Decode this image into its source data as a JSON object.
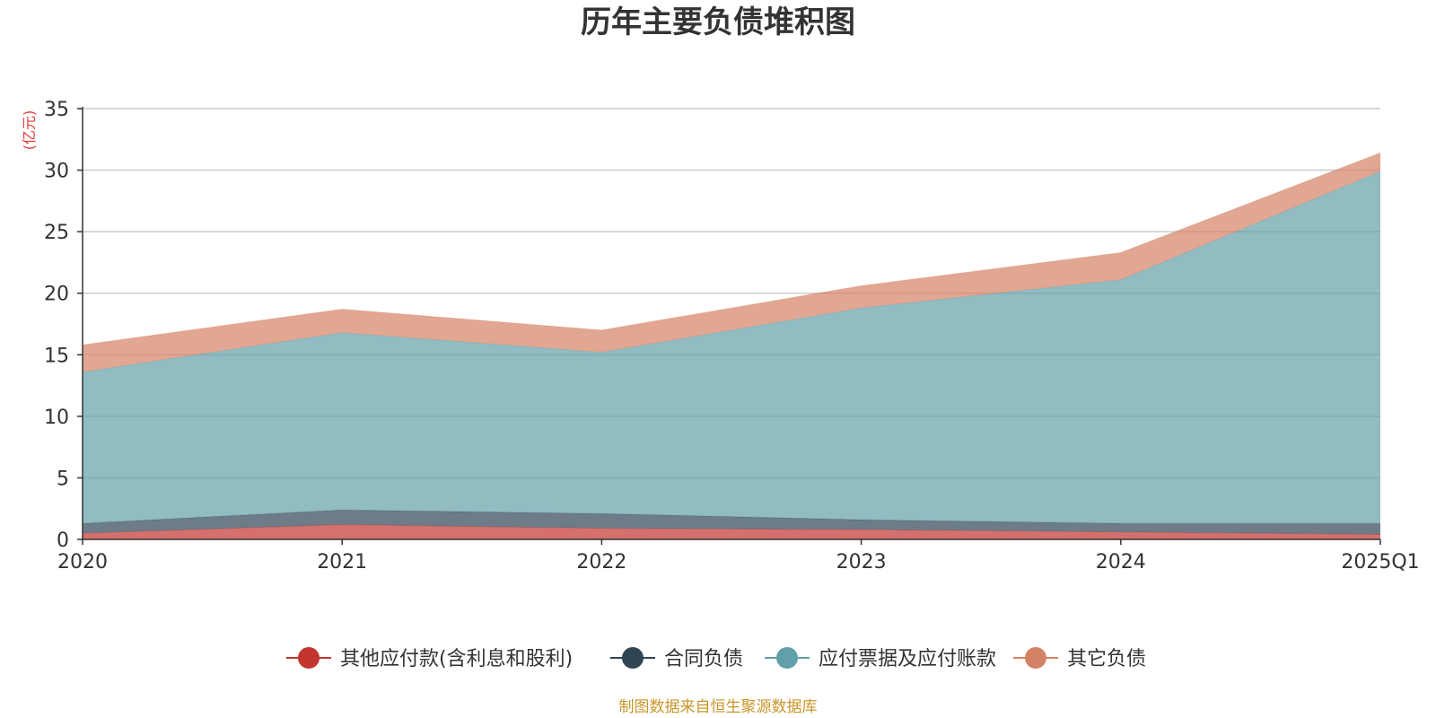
{
  "chart_data": {
    "type": "area",
    "stacked": true,
    "title": "历年主要负债堆积图",
    "y_unit_label": "(亿元)",
    "categories": [
      "2020",
      "2021",
      "2022",
      "2023",
      "2024",
      "2025Q1"
    ],
    "ylim": [
      0,
      35
    ],
    "y_ticks": [
      "0",
      "5",
      "10",
      "15",
      "20",
      "25",
      "30",
      "35"
    ],
    "grid": true,
    "legend_position": "bottom",
    "series": [
      {
        "name": "其他应付款(含利息和股利)",
        "color": "#c23531",
        "values": [
          0.5,
          1.2,
          0.9,
          0.8,
          0.6,
          0.4
        ]
      },
      {
        "name": "合同负债",
        "color": "#2f4554",
        "values": [
          0.8,
          1.2,
          1.2,
          0.8,
          0.7,
          0.9
        ]
      },
      {
        "name": "应付票据及应付账款",
        "color": "#61a0a8",
        "values": [
          12.3,
          14.4,
          13.1,
          17.2,
          19.8,
          28.6
        ]
      },
      {
        "name": "其它负债",
        "color": "#d48265",
        "values": [
          2.2,
          1.9,
          1.8,
          1.8,
          2.2,
          1.5
        ]
      }
    ],
    "source_note": "制图数据来自恒生聚源数据库"
  }
}
